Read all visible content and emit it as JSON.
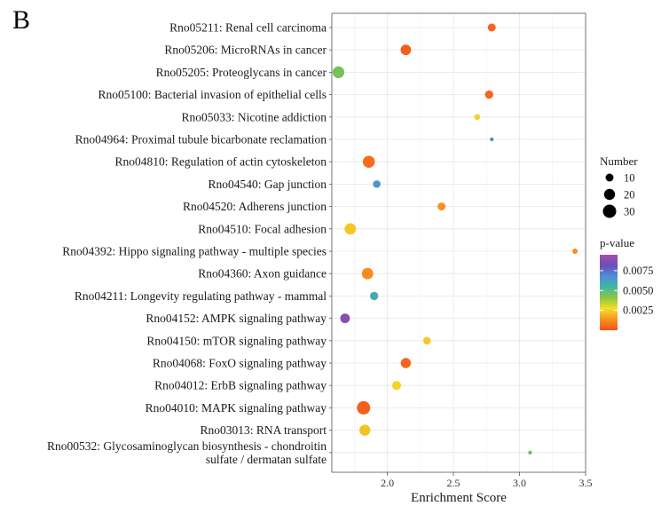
{
  "panel_label": "B",
  "chart_data": {
    "type": "scatter",
    "xlabel": "Enrichment Score",
    "xlim": [
      1.58,
      3.5
    ],
    "x_ticks": [
      2.0,
      2.5,
      3.0,
      3.5
    ],
    "x_tick_labels": [
      "2.0",
      "2.5",
      "3.0",
      "3.5"
    ],
    "grid": true,
    "legend_position": "right",
    "size_legend": {
      "title": "Number",
      "values": [
        10,
        20,
        30
      ],
      "labels": [
        "10",
        "20",
        "30"
      ]
    },
    "color_legend": {
      "title": "p-value",
      "range": [
        0.0,
        0.0095
      ],
      "ticks": [
        0.0025,
        0.005,
        0.0075
      ],
      "tick_labels": [
        "0.0025",
        "0.0050",
        "0.0075"
      ],
      "colors": [
        "#f5501d",
        "#f7941d",
        "#f4de2a",
        "#8dc63f",
        "#42b6a0",
        "#4a90d9",
        "#6a4fb8",
        "#a64ca6"
      ]
    },
    "terms": [
      {
        "label": [
          "Rno05211: Renal cell carcinoma"
        ],
        "x": 2.79,
        "number": 10,
        "pvalue": 0.0004
      },
      {
        "label": [
          "Rno05206: MicroRNAs in cancer"
        ],
        "x": 2.14,
        "number": 18,
        "pvalue": 0.0003
      },
      {
        "label": [
          "Rno05205: Proteoglycans in cancer"
        ],
        "x": 1.63,
        "number": 23,
        "pvalue": 0.0045
      },
      {
        "label": [
          "Rno05100: Bacterial invasion of epithelial cells"
        ],
        "x": 2.77,
        "number": 11,
        "pvalue": 0.0004
      },
      {
        "label": [
          "Rno05033: Nicotine addiction"
        ],
        "x": 2.68,
        "number": 5,
        "pvalue": 0.0025
      },
      {
        "label": [
          "Rno04964: Proximal tubule bicarbonate reclamation"
        ],
        "x": 2.79,
        "number": 2,
        "pvalue": 0.0068
      },
      {
        "label": [
          "Rno04810: Regulation of actin cytoskeleton"
        ],
        "x": 1.86,
        "number": 24,
        "pvalue": 0.0006
      },
      {
        "label": [
          "Rno04540: Gap junction"
        ],
        "x": 1.92,
        "number": 9,
        "pvalue": 0.0065
      },
      {
        "label": [
          "Rno04520: Adherens junction"
        ],
        "x": 2.41,
        "number": 10,
        "pvalue": 0.0013
      },
      {
        "label": [
          "Rno04510: Focal adhesion"
        ],
        "x": 1.72,
        "number": 22,
        "pvalue": 0.0023
      },
      {
        "label": [
          "Rno04392: Hippo signaling pathway - multiple species"
        ],
        "x": 3.42,
        "number": 4,
        "pvalue": 0.0012
      },
      {
        "label": [
          "Rno04360: Axon guidance"
        ],
        "x": 1.85,
        "number": 22,
        "pvalue": 0.0012
      },
      {
        "label": [
          "Rno04211: Longevity regulating pathway - mammal"
        ],
        "x": 1.9,
        "number": 11,
        "pvalue": 0.0058
      },
      {
        "label": [
          "Rno04152: AMPK signaling pathway"
        ],
        "x": 1.68,
        "number": 15,
        "pvalue": 0.0088
      },
      {
        "label": [
          "Rno04150: mTOR signaling pathway"
        ],
        "x": 2.3,
        "number": 9,
        "pvalue": 0.0023
      },
      {
        "label": [
          "Rno04068: FoxO signaling pathway"
        ],
        "x": 2.14,
        "number": 17,
        "pvalue": 0.0004
      },
      {
        "label": [
          "Rno04012: ErbB signaling pathway"
        ],
        "x": 2.07,
        "number": 13,
        "pvalue": 0.0025
      },
      {
        "label": [
          "Rno04010: MAPK signaling pathway"
        ],
        "x": 1.82,
        "number": 30,
        "pvalue": 0.0003
      },
      {
        "label": [
          "Rno03013: RNA transport"
        ],
        "x": 1.83,
        "number": 20,
        "pvalue": 0.0022
      },
      {
        "label": [
          "Rno00532: Glycosaminoglycan biosynthesis - chondroitin",
          "sulfate / dermatan sulfate"
        ],
        "x": 3.08,
        "number": 2,
        "pvalue": 0.0045
      }
    ]
  }
}
